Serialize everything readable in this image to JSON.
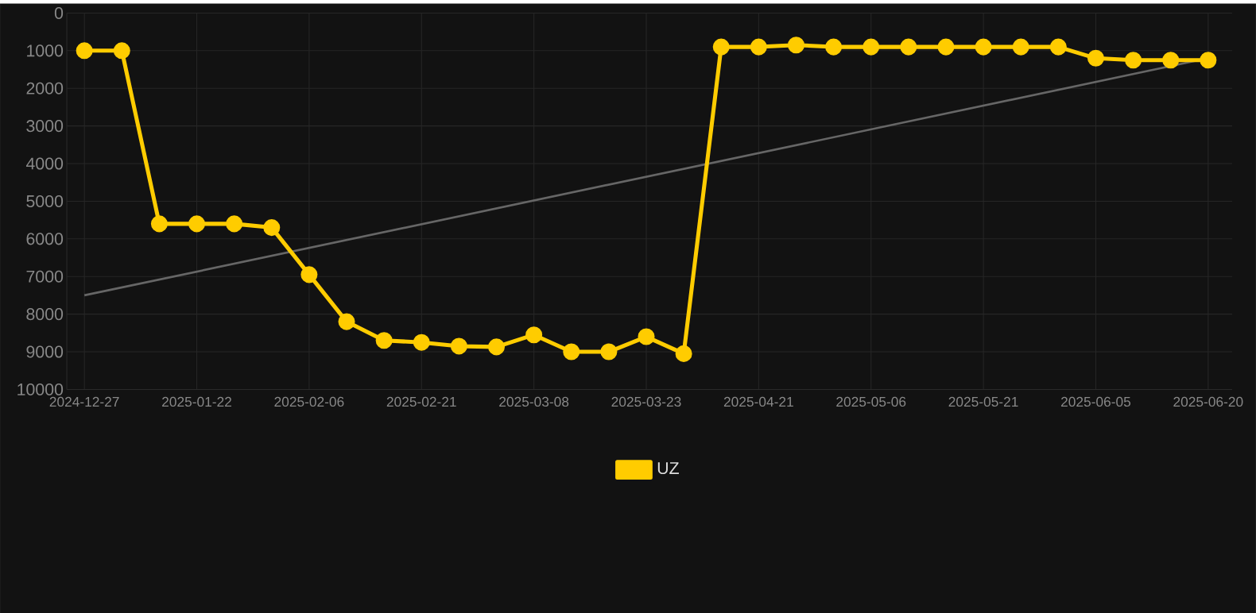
{
  "chart_data": {
    "type": "line",
    "categories": [
      "2024-12-27",
      null,
      null,
      "2025-01-22",
      null,
      null,
      "2025-02-06",
      null,
      null,
      "2025-02-21",
      null,
      null,
      "2025-03-08",
      null,
      null,
      "2025-03-23",
      null,
      null,
      "2025-04-21",
      null,
      null,
      "2025-05-06",
      null,
      null,
      "2025-05-21",
      null,
      null,
      "2025-06-05",
      null,
      null,
      "2025-06-20"
    ],
    "series": [
      {
        "name": "UZ",
        "color": "#ffcc00",
        "marker": "circle",
        "values": [
          1000,
          1000,
          5600,
          5600,
          5600,
          5700,
          6950,
          8200,
          8700,
          8750,
          8850,
          8870,
          8550,
          9000,
          9000,
          8600,
          9050,
          900,
          900,
          850,
          900,
          900,
          900,
          900,
          900,
          900,
          900,
          1200,
          1250,
          1250,
          1250
        ]
      },
      {
        "type": "line",
        "color": "#666666",
        "marker": "none",
        "values": [
          7500,
          null,
          null,
          null,
          null,
          null,
          null,
          null,
          null,
          null,
          null,
          null,
          null,
          null,
          null,
          null,
          null,
          null,
          null,
          null,
          null,
          null,
          null,
          null,
          null,
          null,
          null,
          null,
          null,
          null,
          1200
        ]
      }
    ],
    "ylim": [
      10000,
      0
    ],
    "yticks": [
      0,
      1000,
      2000,
      3000,
      4000,
      5000,
      6000,
      7000,
      8000,
      9000,
      10000
    ],
    "grid": true,
    "legend": "bottom",
    "line_style": "solid"
  }
}
